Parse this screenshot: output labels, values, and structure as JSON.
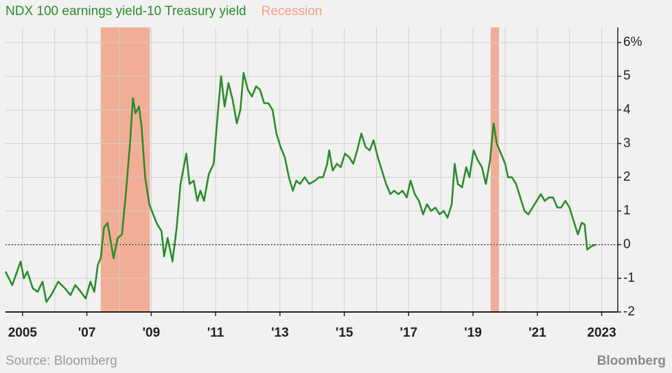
{
  "chart_data": {
    "type": "line",
    "series": [
      {
        "name": "NDX 100 earnings yield-10 Treasury yield",
        "color": "#2b8c2b",
        "values": [
          -0.8,
          -1.2,
          -0.8,
          -0.5,
          -1.0,
          -0.8,
          -1.3,
          -1.4,
          -1.1,
          -1.7,
          -1.5,
          -1.1,
          -1.3,
          -1.5,
          -1.2,
          -1.4,
          -1.6,
          -1.1,
          -1.4,
          -0.6,
          -0.4,
          0.5,
          0.65,
          0.1,
          -0.4,
          0.2,
          0.3,
          1.5,
          3.0,
          4.35,
          3.9,
          4.1,
          3.5,
          2.0,
          1.2,
          0.9,
          0.6,
          0.4,
          -0.35,
          0.2,
          -0.5,
          0.5,
          1.8,
          2.7,
          1.8,
          1.9,
          1.3,
          1.6,
          1.3,
          2.1,
          2.4,
          3.8,
          5.0,
          4.1,
          4.8,
          4.3,
          3.6,
          4.0,
          5.1,
          4.6,
          4.4,
          4.7,
          4.6,
          4.2,
          4.2,
          4.0,
          3.3,
          2.9,
          2.6,
          2.0,
          1.6,
          1.9,
          1.8,
          2.0,
          1.8,
          1.9,
          2.0,
          2.0,
          2.4,
          2.8,
          2.2,
          2.4,
          2.3,
          2.7,
          2.6,
          2.4,
          2.8,
          3.3,
          2.9,
          2.8,
          3.1,
          2.6,
          2.2,
          1.8,
          1.5,
          1.6,
          1.5,
          1.6,
          1.4,
          1.9,
          1.5,
          1.3,
          0.9,
          1.2,
          1.0,
          1.1,
          0.9,
          1.0,
          0.8,
          1.2,
          2.4,
          1.8,
          1.7,
          2.3,
          2.0,
          2.8,
          2.5,
          2.3,
          1.8,
          2.5,
          3.6,
          3.0,
          2.7,
          2.4,
          2.0,
          2.0,
          1.8,
          1.4,
          1.0,
          0.9,
          1.1,
          1.3,
          1.5,
          1.3,
          1.4,
          1.4,
          1.1,
          1.1,
          1.3,
          1.1,
          0.7,
          0.3,
          0.65,
          0.6,
          -0.15,
          -0.05,
          0.0
        ]
      }
    ],
    "x": [
      2004.47,
      2004.68,
      2004.83,
      2004.94,
      2005.04,
      2005.15,
      2005.32,
      2005.47,
      2005.62,
      2005.74,
      2005.89,
      2006.11,
      2006.32,
      2006.49,
      2006.64,
      2006.81,
      2006.96,
      2007.11,
      2007.23,
      2007.34,
      2007.43,
      2007.53,
      2007.64,
      2007.74,
      2007.83,
      2007.96,
      2008.09,
      2008.21,
      2008.34,
      2008.43,
      2008.51,
      2008.62,
      2008.7,
      2008.81,
      2008.94,
      2009.06,
      2009.19,
      2009.32,
      2009.4,
      2009.51,
      2009.66,
      2009.79,
      2009.91,
      2010.09,
      2010.19,
      2010.32,
      2010.43,
      2010.53,
      2010.64,
      2010.79,
      2010.94,
      2011.06,
      2011.17,
      2011.28,
      2011.4,
      2011.53,
      2011.66,
      2011.77,
      2011.87,
      2012.0,
      2012.13,
      2012.26,
      2012.38,
      2012.51,
      2012.64,
      2012.77,
      2012.89,
      2013.02,
      2013.15,
      2013.28,
      2013.4,
      2013.51,
      2013.62,
      2013.77,
      2013.91,
      2014.09,
      2014.21,
      2014.34,
      2014.47,
      2014.53,
      2014.64,
      2014.77,
      2014.89,
      2015.02,
      2015.15,
      2015.28,
      2015.4,
      2015.53,
      2015.66,
      2015.79,
      2015.91,
      2016.04,
      2016.17,
      2016.3,
      2016.43,
      2016.55,
      2016.68,
      2016.81,
      2016.94,
      2017.06,
      2017.19,
      2017.32,
      2017.45,
      2017.57,
      2017.7,
      2017.83,
      2017.96,
      2018.09,
      2018.21,
      2018.34,
      2018.43,
      2018.53,
      2018.66,
      2018.79,
      2018.89,
      2019.02,
      2019.15,
      2019.28,
      2019.4,
      2019.53,
      2019.64,
      2019.74,
      2019.87,
      2020.0,
      2020.09,
      2020.21,
      2020.34,
      2020.47,
      2020.6,
      2020.72,
      2020.85,
      2020.98,
      2021.11,
      2021.23,
      2021.36,
      2021.49,
      2021.62,
      2021.74,
      2021.87,
      2022.0,
      2022.13,
      2022.26,
      2022.38,
      2022.47,
      2022.55,
      2022.68,
      2022.81
    ],
    "recessions": {
      "name": "Recession",
      "color": "#f2a186",
      "ranges": [
        [
          2007.43,
          2008.96
        ],
        [
          2019.55,
          2019.81
        ]
      ]
    },
    "xlim": [
      2004.47,
      2023.5
    ],
    "xticks": [
      2005,
      {
        "value": 2007,
        "label": "'07"
      },
      {
        "value": 2009,
        "label": "'09"
      },
      {
        "value": 2011,
        "label": "'11"
      },
      {
        "value": 2013,
        "label": "'13"
      },
      {
        "value": 2015,
        "label": "'15"
      },
      {
        "value": 2017,
        "label": "'17"
      },
      {
        "value": 2019,
        "label": "'19"
      },
      {
        "value": 2021,
        "label": "'21"
      },
      2023
    ],
    "xminor": [
      2006,
      2008,
      2010,
      2012,
      2014,
      2016,
      2018,
      2020,
      2022
    ],
    "ylim": [
      -2,
      6.45
    ],
    "yticks": [
      -2,
      -1,
      0,
      1,
      2,
      3,
      4,
      5,
      {
        "value": 6,
        "label": "6%"
      }
    ],
    "hline": 0,
    "grid": true,
    "source": "Source: Bloomberg",
    "logo": "Bloomberg"
  }
}
